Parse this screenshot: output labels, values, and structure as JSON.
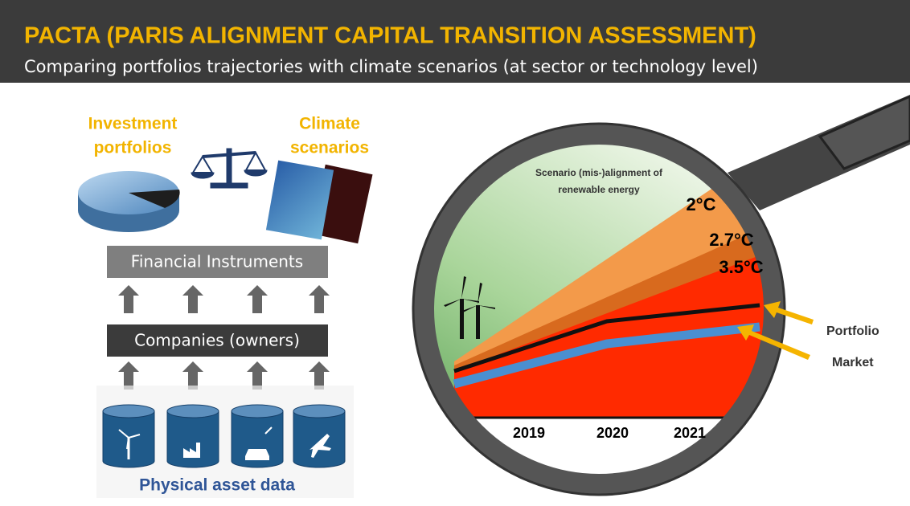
{
  "header": {
    "title": "PACTA (PARIS ALIGNMENT CAPITAL TRANSITION ASSESSMENT)",
    "subtitle": "Comparing portfolios trajectories with climate scenarios (at sector or technology level)"
  },
  "left": {
    "investment_portfolios": [
      "Investment",
      "portfolios"
    ],
    "climate_scenarios": [
      "Climate",
      "scenarios"
    ],
    "financial_instruments": "Financial Instruments",
    "companies": "Companies (owners)",
    "physical_asset_data": "Physical asset data"
  },
  "lens": {
    "caption": [
      "Scenario (mis-)alignment of",
      "renewable energy"
    ],
    "scenarios": [
      "2°C",
      "2.7°C",
      "3.5°C"
    ],
    "years": [
      "2019",
      "2020",
      "2021"
    ],
    "pointers": [
      "Portfolio",
      "Market"
    ]
  }
}
